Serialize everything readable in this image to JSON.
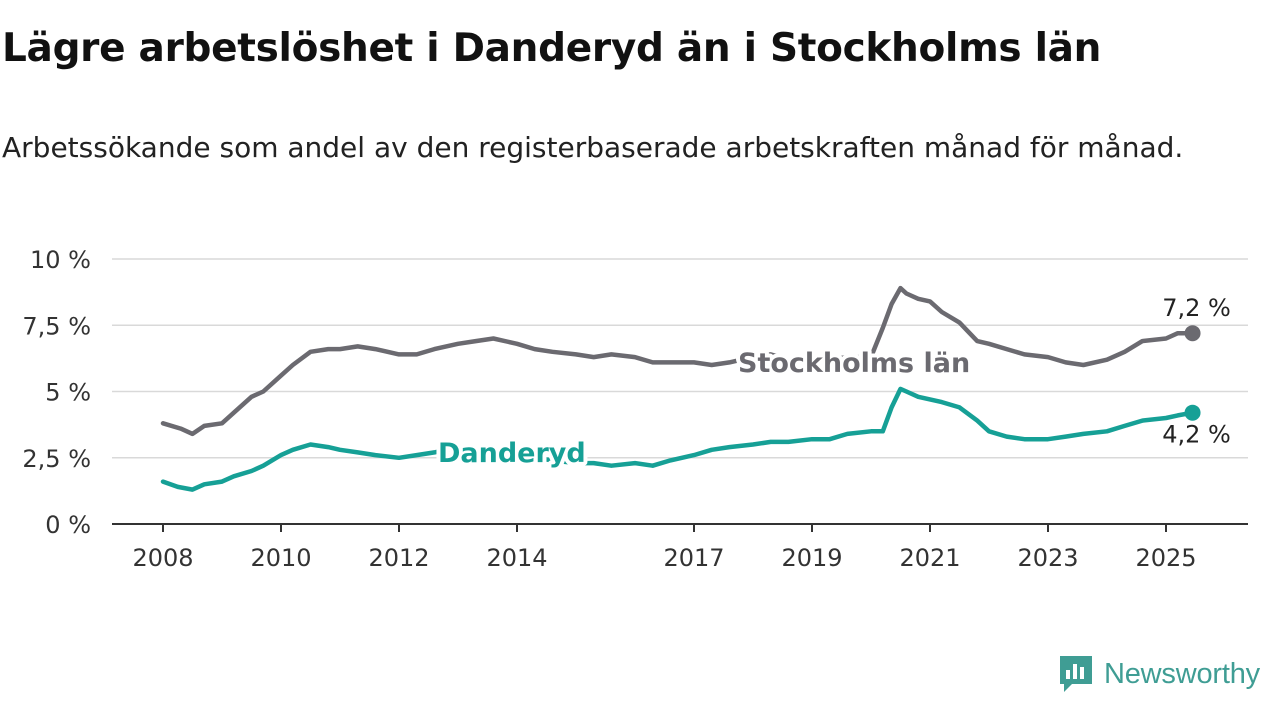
{
  "header": {
    "title": "Lägre arbetslöshet i Danderyd än i Stockholms län",
    "subtitle": "Arbetssökande som andel av den registerbaserade arbetskraften månad för månad."
  },
  "brand": {
    "name": "Newsworthy",
    "color": "#3f9d94"
  },
  "chart_data": {
    "type": "line",
    "title": "Lägre arbetslöshet i Danderyd än i Stockholms län",
    "subtitle": "Arbetssökande som andel av den registerbaserade arbetskraften månad för månad.",
    "xlim": [
      2008,
      2025.5
    ],
    "ylim": [
      0,
      10
    ],
    "y_ticks": [
      0,
      2.5,
      5,
      7.5,
      10
    ],
    "y_tick_labels": [
      "0 %",
      "2,5 %",
      "5 %",
      "7,5 %",
      "10 %"
    ],
    "x_ticks": [
      2008,
      2010,
      2012,
      2014,
      2017,
      2019,
      2021,
      2023,
      2025
    ],
    "x_tick_labels": [
      "2008",
      "2010",
      "2012",
      "2014",
      "2017",
      "2019",
      "2021",
      "2023",
      "2025"
    ],
    "grid": true,
    "legend": "inline labels",
    "series": [
      {
        "name": "Stockholms län",
        "color": "#6b6a70",
        "end_label": "7,2 %",
        "x": [
          2008.0,
          2008.3,
          2008.5,
          2008.7,
          2009.0,
          2009.2,
          2009.5,
          2009.7,
          2010.0,
          2010.2,
          2010.5,
          2010.8,
          2011.0,
          2011.3,
          2011.6,
          2012.0,
          2012.3,
          2012.6,
          2013.0,
          2013.3,
          2013.6,
          2014.0,
          2014.3,
          2014.6,
          2015.0,
          2015.3,
          2015.6,
          2016.0,
          2016.3,
          2016.6,
          2017.0,
          2017.3,
          2017.6,
          2018.0,
          2018.3,
          2018.6,
          2019.0,
          2019.3,
          2019.6,
          2020.0,
          2020.2,
          2020.35,
          2020.5,
          2020.6,
          2020.8,
          2021.0,
          2021.2,
          2021.5,
          2021.8,
          2022.0,
          2022.3,
          2022.6,
          2023.0,
          2023.3,
          2023.6,
          2024.0,
          2024.3,
          2024.6,
          2025.0,
          2025.2,
          2025.45
        ],
        "values": [
          3.8,
          3.6,
          3.4,
          3.7,
          3.8,
          4.2,
          4.8,
          5.0,
          5.6,
          6.0,
          6.5,
          6.6,
          6.6,
          6.7,
          6.6,
          6.4,
          6.4,
          6.6,
          6.8,
          6.9,
          7.0,
          6.8,
          6.6,
          6.5,
          6.4,
          6.3,
          6.4,
          6.3,
          6.1,
          6.1,
          6.1,
          6.0,
          6.1,
          6.3,
          6.4,
          6.2,
          6.3,
          6.2,
          6.3,
          6.3,
          7.4,
          8.3,
          8.9,
          8.7,
          8.5,
          8.4,
          8.0,
          7.6,
          6.9,
          6.8,
          6.6,
          6.4,
          6.3,
          6.1,
          6.0,
          6.2,
          6.5,
          6.9,
          7.0,
          7.2,
          7.2
        ]
      },
      {
        "name": "Danderyd",
        "color": "#16a096",
        "end_label": "4,2 %",
        "x": [
          2008.0,
          2008.25,
          2008.5,
          2008.7,
          2009.0,
          2009.2,
          2009.5,
          2009.7,
          2010.0,
          2010.2,
          2010.5,
          2010.8,
          2011.0,
          2011.3,
          2011.6,
          2012.0,
          2012.3,
          2012.6,
          2013.0,
          2013.3,
          2013.6,
          2014.0,
          2014.3,
          2014.6,
          2015.0,
          2015.3,
          2015.6,
          2016.0,
          2016.3,
          2016.6,
          2017.0,
          2017.3,
          2017.6,
          2018.0,
          2018.3,
          2018.6,
          2019.0,
          2019.3,
          2019.6,
          2020.0,
          2020.2,
          2020.35,
          2020.5,
          2020.6,
          2020.8,
          2021.0,
          2021.2,
          2021.5,
          2021.8,
          2022.0,
          2022.3,
          2022.6,
          2023.0,
          2023.3,
          2023.6,
          2024.0,
          2024.3,
          2024.6,
          2025.0,
          2025.2,
          2025.45
        ],
        "values": [
          1.6,
          1.4,
          1.3,
          1.5,
          1.6,
          1.8,
          2.0,
          2.2,
          2.6,
          2.8,
          3.0,
          2.9,
          2.8,
          2.7,
          2.6,
          2.5,
          2.6,
          2.7,
          2.9,
          2.8,
          2.7,
          2.6,
          2.5,
          2.4,
          2.3,
          2.3,
          2.2,
          2.3,
          2.2,
          2.4,
          2.6,
          2.8,
          2.9,
          3.0,
          3.1,
          3.1,
          3.2,
          3.2,
          3.4,
          3.5,
          3.5,
          4.4,
          5.1,
          5.0,
          4.8,
          4.7,
          4.6,
          4.4,
          3.9,
          3.5,
          3.3,
          3.2,
          3.2,
          3.3,
          3.4,
          3.5,
          3.7,
          3.9,
          4.0,
          4.1,
          4.2
        ]
      }
    ]
  }
}
